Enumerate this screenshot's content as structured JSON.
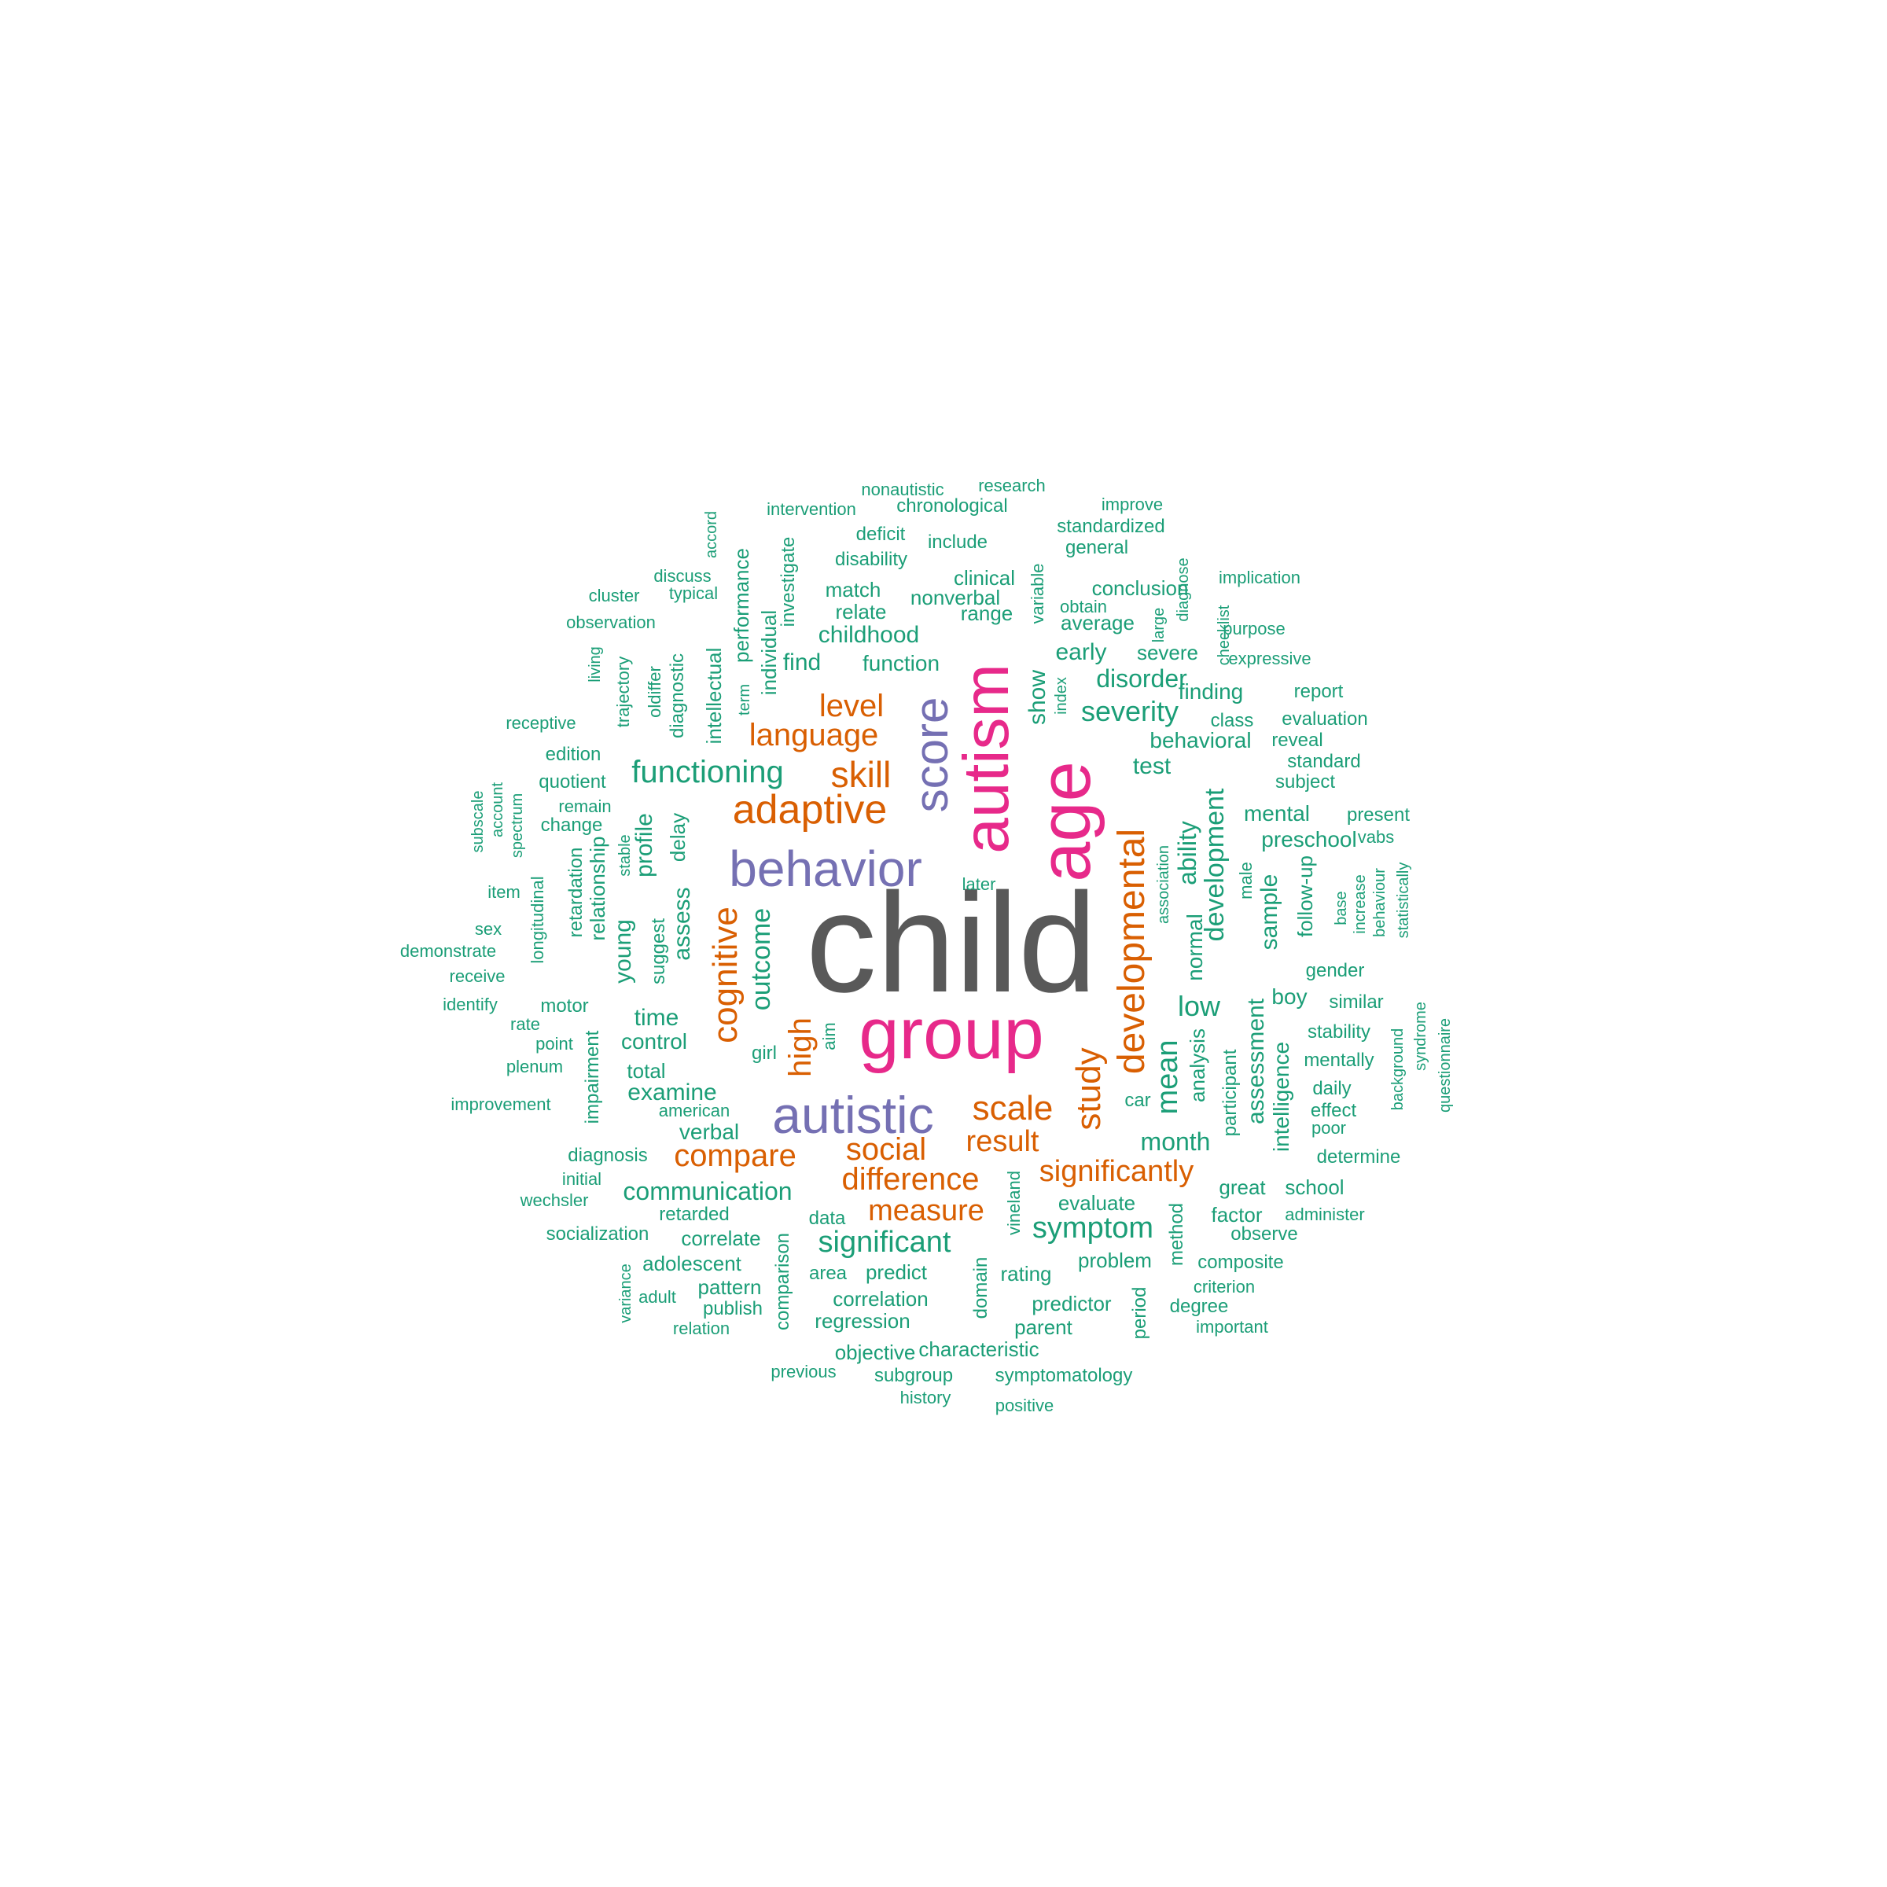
{
  "colors": {
    "dark": "#595959",
    "pink": "#e7298a",
    "purple": "#7570b3",
    "orange": "#d95f02",
    "teal": "#1b9e77"
  },
  "words": [
    {
      "text": "child",
      "color": "dark",
      "weight": 1.0
    },
    {
      "text": "group",
      "color": "pink",
      "weight": 0.7
    },
    {
      "text": "age",
      "color": "pink",
      "weight": 0.65
    },
    {
      "text": "autism",
      "color": "pink",
      "weight": 0.62
    },
    {
      "text": "behavior",
      "color": "purple",
      "weight": 0.48
    },
    {
      "text": "autistic",
      "color": "purple",
      "weight": 0.46
    },
    {
      "text": "score",
      "color": "purple",
      "weight": 0.45
    },
    {
      "text": "adaptive",
      "color": "orange",
      "weight": 0.38
    },
    {
      "text": "developmental",
      "color": "orange",
      "weight": 0.34
    },
    {
      "text": "cognitive",
      "color": "orange",
      "weight": 0.33
    },
    {
      "text": "skill",
      "color": "orange",
      "weight": 0.3
    },
    {
      "text": "scale",
      "color": "orange",
      "weight": 0.3
    },
    {
      "text": "study",
      "color": "orange",
      "weight": 0.3
    },
    {
      "text": "compare",
      "color": "orange",
      "weight": 0.27
    },
    {
      "text": "language",
      "color": "orange",
      "weight": 0.27
    },
    {
      "text": "social",
      "color": "orange",
      "weight": 0.27
    },
    {
      "text": "difference",
      "color": "orange",
      "weight": 0.27
    },
    {
      "text": "significantly",
      "color": "orange",
      "weight": 0.27
    },
    {
      "text": "result",
      "color": "orange",
      "weight": 0.27
    },
    {
      "text": "level",
      "color": "orange",
      "weight": 0.27
    },
    {
      "text": "high",
      "color": "orange",
      "weight": 0.26
    },
    {
      "text": "measure",
      "color": "orange",
      "weight": 0.26
    },
    {
      "text": "functioning",
      "color": "teal",
      "weight": 0.27
    },
    {
      "text": "significant",
      "color": "teal",
      "weight": 0.25
    },
    {
      "text": "symptom",
      "color": "teal",
      "weight": 0.25
    },
    {
      "text": "outcome",
      "color": "teal",
      "weight": 0.24
    },
    {
      "text": "mean",
      "color": "teal",
      "weight": 0.24
    },
    {
      "text": "low",
      "color": "teal",
      "weight": 0.24
    },
    {
      "text": "development",
      "color": "teal",
      "weight": 0.23
    },
    {
      "text": "severity",
      "color": "teal",
      "weight": 0.23
    },
    {
      "text": "disorder",
      "color": "teal",
      "weight": 0.21
    },
    {
      "text": "month",
      "color": "teal",
      "weight": 0.21
    },
    {
      "text": "ability",
      "color": "teal",
      "weight": 0.21
    },
    {
      "text": "sample",
      "color": "teal",
      "weight": 0.2
    },
    {
      "text": "assessment",
      "color": "teal",
      "weight": 0.2
    },
    {
      "text": "communication",
      "color": "teal",
      "weight": 0.19
    },
    {
      "text": "young",
      "color": "teal",
      "weight": 0.2
    },
    {
      "text": "time",
      "color": "teal",
      "weight": 0.2
    },
    {
      "text": "examine",
      "color": "teal",
      "weight": 0.2
    },
    {
      "text": "test",
      "color": "teal",
      "weight": 0.2
    },
    {
      "text": "childhood",
      "color": "teal",
      "weight": 0.19
    },
    {
      "text": "find",
      "color": "teal",
      "weight": 0.19
    },
    {
      "text": "show",
      "color": "teal",
      "weight": 0.19
    },
    {
      "text": "early",
      "color": "teal",
      "weight": 0.19
    },
    {
      "text": "profile",
      "color": "teal",
      "weight": 0.19
    },
    {
      "text": "assess",
      "color": "teal",
      "weight": 0.19
    },
    {
      "text": "intelligence",
      "color": "teal",
      "weight": 0.18
    },
    {
      "text": "preschool",
      "color": "teal",
      "weight": 0.17
    },
    {
      "text": "behavioral",
      "color": "teal",
      "weight": 0.17
    },
    {
      "text": "verbal",
      "color": "teal",
      "weight": 0.17
    },
    {
      "text": "control",
      "color": "teal",
      "weight": 0.17
    },
    {
      "text": "function",
      "color": "teal",
      "weight": 0.17
    },
    {
      "text": "normal",
      "color": "teal",
      "weight": 0.17
    },
    {
      "text": "analysis",
      "color": "teal",
      "weight": 0.16
    },
    {
      "text": "follow-up",
      "color": "teal",
      "weight": 0.16
    },
    {
      "text": "mental",
      "color": "teal",
      "weight": 0.16
    },
    {
      "text": "finding",
      "color": "teal",
      "weight": 0.16
    },
    {
      "text": "severe",
      "color": "teal",
      "weight": 0.16
    },
    {
      "text": "delay",
      "color": "teal",
      "weight": 0.16
    },
    {
      "text": "relationship",
      "color": "teal",
      "weight": 0.16
    },
    {
      "text": "individual",
      "color": "teal",
      "weight": 0.16
    },
    {
      "text": "performance",
      "color": "teal",
      "weight": 0.15
    },
    {
      "text": "diagnostic",
      "color": "teal",
      "weight": 0.15
    },
    {
      "text": "intellectual",
      "color": "teal",
      "weight": 0.15
    },
    {
      "text": "trajectory",
      "color": "teal",
      "weight": 0.14
    },
    {
      "text": "oldiffer",
      "color": "teal",
      "weight": 0.14
    },
    {
      "text": "investigate",
      "color": "teal",
      "weight": 0.14
    },
    {
      "text": "boy",
      "color": "teal",
      "weight": 0.16
    },
    {
      "text": "car",
      "color": "teal",
      "weight": 0.14
    },
    {
      "text": "total",
      "color": "teal",
      "weight": 0.15
    },
    {
      "text": "nonverbal",
      "color": "teal",
      "weight": 0.15
    },
    {
      "text": "range",
      "color": "teal",
      "weight": 0.15
    },
    {
      "text": "average",
      "color": "teal",
      "weight": 0.15
    },
    {
      "text": "conclusion",
      "color": "teal",
      "weight": 0.15
    },
    {
      "text": "match",
      "color": "teal",
      "weight": 0.15
    },
    {
      "text": "relate",
      "color": "teal",
      "weight": 0.15
    },
    {
      "text": "clinical",
      "color": "teal",
      "weight": 0.15
    },
    {
      "text": "variable",
      "color": "teal",
      "weight": 0.14
    },
    {
      "text": "suggest",
      "color": "teal",
      "weight": 0.14
    },
    {
      "text": "stable",
      "color": "teal",
      "weight": 0.12
    },
    {
      "text": "impairment",
      "color": "teal",
      "weight": 0.14
    },
    {
      "text": "retardation",
      "color": "teal",
      "weight": 0.13
    },
    {
      "text": "longitudinal",
      "color": "teal",
      "weight": 0.13
    },
    {
      "text": "participant",
      "color": "teal",
      "weight": 0.14
    },
    {
      "text": "male",
      "color": "teal",
      "weight": 0.12
    },
    {
      "text": "association",
      "color": "teal",
      "weight": 0.12
    },
    {
      "text": "method",
      "color": "teal",
      "weight": 0.13
    },
    {
      "text": "period",
      "color": "teal",
      "weight": 0.13
    },
    {
      "text": "domain",
      "color": "teal",
      "weight": 0.13
    },
    {
      "text": "vineland",
      "color": "teal",
      "weight": 0.13
    },
    {
      "text": "comparison",
      "color": "teal",
      "weight": 0.13
    },
    {
      "text": "girl",
      "color": "teal",
      "weight": 0.13
    },
    {
      "text": "aim",
      "color": "teal",
      "weight": 0.12
    },
    {
      "text": "term",
      "color": "teal",
      "weight": 0.11
    },
    {
      "text": "index",
      "color": "teal",
      "weight": 0.11
    },
    {
      "text": "large",
      "color": "teal",
      "weight": 0.11
    },
    {
      "text": "diagnose",
      "color": "teal",
      "weight": 0.11
    },
    {
      "text": "checklist",
      "color": "teal",
      "weight": 0.11
    },
    {
      "text": "living",
      "color": "teal",
      "weight": 0.11
    },
    {
      "text": "accord",
      "color": "teal",
      "weight": 0.11
    },
    {
      "text": "evaluate",
      "color": "teal",
      "weight": 0.14
    },
    {
      "text": "problem",
      "color": "teal",
      "weight": 0.14
    },
    {
      "text": "rating",
      "color": "teal",
      "weight": 0.14
    },
    {
      "text": "predictor",
      "color": "teal",
      "weight": 0.14
    },
    {
      "text": "parent",
      "color": "teal",
      "weight": 0.13
    },
    {
      "text": "predict",
      "color": "teal",
      "weight": 0.14
    },
    {
      "text": "correlation",
      "color": "teal",
      "weight": 0.14
    },
    {
      "text": "regression",
      "color": "teal",
      "weight": 0.14
    },
    {
      "text": "characteristic",
      "color": "teal",
      "weight": 0.14
    },
    {
      "text": "objective",
      "color": "teal",
      "weight": 0.14
    },
    {
      "text": "subgroup",
      "color": "teal",
      "weight": 0.13
    },
    {
      "text": "symptomatology",
      "color": "teal",
      "weight": 0.13
    },
    {
      "text": "correlate",
      "color": "teal",
      "weight": 0.14
    },
    {
      "text": "adolescent",
      "color": "teal",
      "weight": 0.14
    },
    {
      "text": "area",
      "color": "teal",
      "weight": 0.13
    },
    {
      "text": "pattern",
      "color": "teal",
      "weight": 0.13
    },
    {
      "text": "publish",
      "color": "teal",
      "weight": 0.13
    },
    {
      "text": "data",
      "color": "teal",
      "weight": 0.13
    },
    {
      "text": "retarded",
      "color": "teal",
      "weight": 0.13
    },
    {
      "text": "socialization",
      "color": "teal",
      "weight": 0.13
    },
    {
      "text": "diagnosis",
      "color": "teal",
      "weight": 0.13
    },
    {
      "text": "factor",
      "color": "teal",
      "weight": 0.13
    },
    {
      "text": "great",
      "color": "teal",
      "weight": 0.13
    },
    {
      "text": "school",
      "color": "teal",
      "weight": 0.13
    },
    {
      "text": "observe",
      "color": "teal",
      "weight": 0.12
    },
    {
      "text": "composite",
      "color": "teal",
      "weight": 0.13
    },
    {
      "text": "degree",
      "color": "teal",
      "weight": 0.12
    },
    {
      "text": "determine",
      "color": "teal",
      "weight": 0.12
    },
    {
      "text": "daily",
      "color": "teal",
      "weight": 0.12
    },
    {
      "text": "effect",
      "color": "teal",
      "weight": 0.12
    },
    {
      "text": "mentally",
      "color": "teal",
      "weight": 0.13
    },
    {
      "text": "stability",
      "color": "teal",
      "weight": 0.13
    },
    {
      "text": "similar",
      "color": "teal",
      "weight": 0.12
    },
    {
      "text": "gender",
      "color": "teal",
      "weight": 0.13
    },
    {
      "text": "subject",
      "color": "teal",
      "weight": 0.13
    },
    {
      "text": "standard",
      "color": "teal",
      "weight": 0.12
    },
    {
      "text": "reveal",
      "color": "teal",
      "weight": 0.12
    },
    {
      "text": "class",
      "color": "teal",
      "weight": 0.12
    },
    {
      "text": "evaluation",
      "color": "teal",
      "weight": 0.12
    },
    {
      "text": "report",
      "color": "teal",
      "weight": 0.12
    },
    {
      "text": "present",
      "color": "teal",
      "weight": 0.12
    },
    {
      "text": "motor",
      "color": "teal",
      "weight": 0.13
    },
    {
      "text": "rate",
      "color": "teal",
      "weight": 0.12
    },
    {
      "text": "point",
      "color": "teal",
      "weight": 0.12
    },
    {
      "text": "plenum",
      "color": "teal",
      "weight": 0.12
    },
    {
      "text": "quotient",
      "color": "teal",
      "weight": 0.12
    },
    {
      "text": "change",
      "color": "teal",
      "weight": 0.12
    },
    {
      "text": "edition",
      "color": "teal",
      "weight": 0.12
    },
    {
      "text": "standardized",
      "color": "teal",
      "weight": 0.12
    },
    {
      "text": "general",
      "color": "teal",
      "weight": 0.12
    },
    {
      "text": "include",
      "color": "teal",
      "weight": 0.12
    },
    {
      "text": "deficit",
      "color": "teal",
      "weight": 0.12
    },
    {
      "text": "disability",
      "color": "teal",
      "weight": 0.12
    },
    {
      "text": "chronological",
      "color": "teal",
      "weight": 0.12
    },
    {
      "text": "obtain",
      "color": "teal",
      "weight": 0.11
    },
    {
      "text": "nonautistic",
      "color": "teal",
      "weight": 0.1
    },
    {
      "text": "research",
      "color": "teal",
      "weight": 0.1
    },
    {
      "text": "intervention",
      "color": "teal",
      "weight": 0.1
    },
    {
      "text": "improve",
      "color": "teal",
      "weight": 0.1
    },
    {
      "text": "discuss",
      "color": "teal",
      "weight": 0.1
    },
    {
      "text": "cluster",
      "color": "teal",
      "weight": 0.1
    },
    {
      "text": "typical",
      "color": "teal",
      "weight": 0.1
    },
    {
      "text": "observation",
      "color": "teal",
      "weight": 0.1
    },
    {
      "text": "implication",
      "color": "teal",
      "weight": 0.1
    },
    {
      "text": "purpose",
      "color": "teal",
      "weight": 0.1
    },
    {
      "text": "expressive",
      "color": "teal",
      "weight": 0.1
    },
    {
      "text": "receptive",
      "color": "teal",
      "weight": 0.1
    },
    {
      "text": "remain",
      "color": "teal",
      "weight": 0.1
    },
    {
      "text": "vabs",
      "color": "teal",
      "weight": 0.1
    },
    {
      "text": "subscale",
      "color": "teal",
      "weight": 0.1
    },
    {
      "text": "account",
      "color": "teal",
      "weight": 0.1
    },
    {
      "text": "spectrum",
      "color": "teal",
      "weight": 0.1
    },
    {
      "text": "item",
      "color": "teal",
      "weight": 0.1
    },
    {
      "text": "sex",
      "color": "teal",
      "weight": 0.1
    },
    {
      "text": "demonstrate",
      "color": "teal",
      "weight": 0.1
    },
    {
      "text": "receive",
      "color": "teal",
      "weight": 0.1
    },
    {
      "text": "identify",
      "color": "teal",
      "weight": 0.1
    },
    {
      "text": "improvement",
      "color": "teal",
      "weight": 0.1
    },
    {
      "text": "american",
      "color": "teal",
      "weight": 0.1
    },
    {
      "text": "initial",
      "color": "teal",
      "weight": 0.1
    },
    {
      "text": "wechsler",
      "color": "teal",
      "weight": 0.1
    },
    {
      "text": "variance",
      "color": "teal",
      "weight": 0.1
    },
    {
      "text": "adult",
      "color": "teal",
      "weight": 0.1
    },
    {
      "text": "relation",
      "color": "teal",
      "weight": 0.1
    },
    {
      "text": "previous",
      "color": "teal",
      "weight": 0.1
    },
    {
      "text": "history",
      "color": "teal",
      "weight": 0.1
    },
    {
      "text": "positive",
      "color": "teal",
      "weight": 0.1
    },
    {
      "text": "important",
      "color": "teal",
      "weight": 0.1
    },
    {
      "text": "criterion",
      "color": "teal",
      "weight": 0.1
    },
    {
      "text": "administer",
      "color": "teal",
      "weight": 0.1
    },
    {
      "text": "poor",
      "color": "teal",
      "weight": 0.1
    },
    {
      "text": "later",
      "color": "teal",
      "weight": 0.1
    },
    {
      "text": "base",
      "color": "teal",
      "weight": 0.1
    },
    {
      "text": "increase",
      "color": "teal",
      "weight": 0.1
    },
    {
      "text": "behaviour",
      "color": "teal",
      "weight": 0.1
    },
    {
      "text": "statistically",
      "color": "teal",
      "weight": 0.1
    },
    {
      "text": "background",
      "color": "teal",
      "weight": 0.1
    },
    {
      "text": "syndrome",
      "color": "teal",
      "weight": 0.1
    },
    {
      "text": "questionnaire",
      "color": "teal",
      "weight": 0.1
    }
  ]
}
